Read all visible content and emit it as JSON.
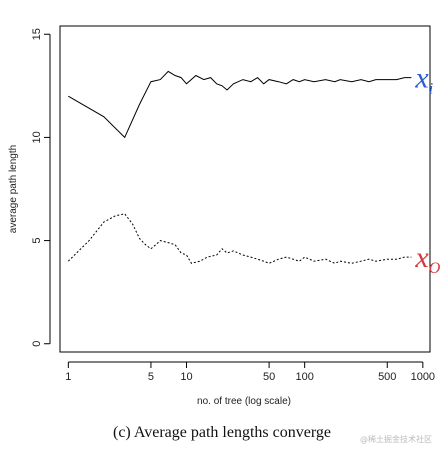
{
  "chart_data": {
    "type": "line",
    "xlabel": "no. of tree (log scale)",
    "ylabel": "average path length",
    "xscale": "log",
    "xlim": [
      0.85,
      1150
    ],
    "ylim": [
      -0.4,
      15.4
    ],
    "xticks": [
      1,
      5,
      10,
      50,
      100,
      500,
      1000
    ],
    "xtick_labels": [
      "1",
      "5",
      "10",
      "50",
      "100",
      "500",
      "1000"
    ],
    "yticks": [
      0,
      5,
      10,
      15
    ],
    "ytick_labels": [
      "0",
      "5",
      "10",
      "15"
    ],
    "grid": false,
    "legend": "none",
    "series": [
      {
        "label_text": "x",
        "label_sub": "i",
        "label_color": "#2a5bd7",
        "line_style": "solid",
        "points": [
          [
            1,
            12.0
          ],
          [
            2,
            11.0
          ],
          [
            3,
            10.0
          ],
          [
            4,
            11.6
          ],
          [
            5,
            12.7
          ],
          [
            6,
            12.8
          ],
          [
            7,
            13.2
          ],
          [
            8,
            13.0
          ],
          [
            9,
            12.9
          ],
          [
            10,
            12.6
          ],
          [
            12,
            13.0
          ],
          [
            14,
            12.8
          ],
          [
            16,
            12.9
          ],
          [
            18,
            12.6
          ],
          [
            20,
            12.5
          ],
          [
            22,
            12.3
          ],
          [
            25,
            12.6
          ],
          [
            30,
            12.8
          ],
          [
            35,
            12.7
          ],
          [
            40,
            12.9
          ],
          [
            45,
            12.6
          ],
          [
            50,
            12.8
          ],
          [
            60,
            12.7
          ],
          [
            70,
            12.6
          ],
          [
            80,
            12.8
          ],
          [
            90,
            12.7
          ],
          [
            100,
            12.8
          ],
          [
            120,
            12.7
          ],
          [
            150,
            12.8
          ],
          [
            180,
            12.7
          ],
          [
            200,
            12.8
          ],
          [
            250,
            12.7
          ],
          [
            300,
            12.8
          ],
          [
            350,
            12.7
          ],
          [
            400,
            12.8
          ],
          [
            500,
            12.8
          ],
          [
            600,
            12.8
          ],
          [
            700,
            12.9
          ],
          [
            800,
            12.9
          ]
        ]
      },
      {
        "label_text": "x",
        "label_sub": "O",
        "label_color": "#d63a3a",
        "line_style": "dotted",
        "points": [
          [
            1,
            4.0
          ],
          [
            1.5,
            5.0
          ],
          [
            2,
            5.9
          ],
          [
            2.5,
            6.2
          ],
          [
            3,
            6.3
          ],
          [
            3.5,
            5.8
          ],
          [
            4,
            5.1
          ],
          [
            4.5,
            4.8
          ],
          [
            5,
            4.6
          ],
          [
            5.5,
            4.8
          ],
          [
            6,
            5.0
          ],
          [
            7,
            4.9
          ],
          [
            8,
            4.8
          ],
          [
            9,
            4.4
          ],
          [
            10,
            4.3
          ],
          [
            11,
            3.9
          ],
          [
            13,
            4.0
          ],
          [
            15,
            4.2
          ],
          [
            18,
            4.3
          ],
          [
            20,
            4.6
          ],
          [
            22,
            4.4
          ],
          [
            25,
            4.5
          ],
          [
            30,
            4.3
          ],
          [
            35,
            4.2
          ],
          [
            40,
            4.1
          ],
          [
            45,
            4.0
          ],
          [
            50,
            3.9
          ],
          [
            60,
            4.1
          ],
          [
            70,
            4.2
          ],
          [
            80,
            4.1
          ],
          [
            90,
            4.0
          ],
          [
            100,
            4.2
          ],
          [
            120,
            4.0
          ],
          [
            150,
            4.1
          ],
          [
            180,
            3.9
          ],
          [
            200,
            4.0
          ],
          [
            250,
            3.9
          ],
          [
            300,
            4.0
          ],
          [
            350,
            4.1
          ],
          [
            400,
            4.0
          ],
          [
            500,
            4.1
          ],
          [
            600,
            4.1
          ],
          [
            700,
            4.2
          ],
          [
            800,
            4.2
          ]
        ]
      }
    ]
  },
  "caption": "(c) Average path lengths converge",
  "watermark": "@稀土掘金技术社区"
}
